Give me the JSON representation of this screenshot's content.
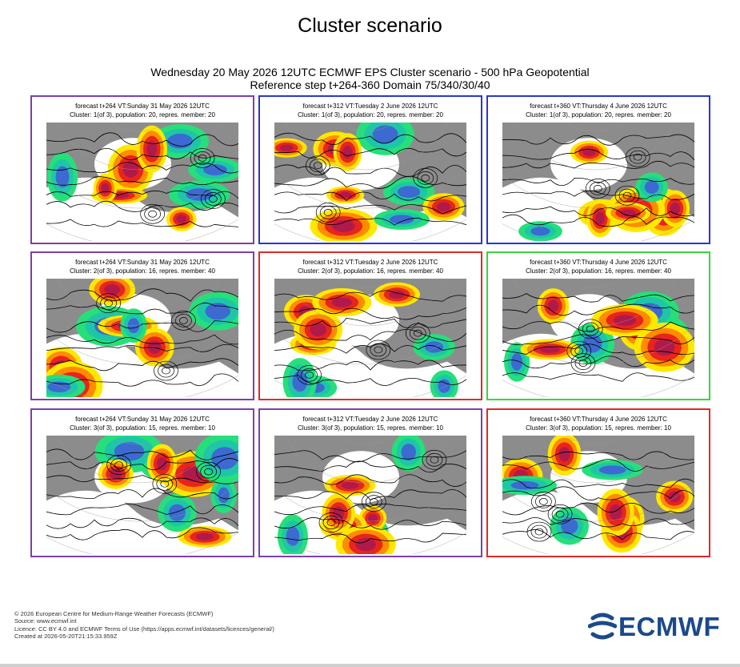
{
  "page": {
    "title": "Cluster scenario",
    "header_line1": "Wednesday 20 May 2026 12UTC ECMWF EPS Cluster scenario - 500 hPa Geopotential",
    "header_line2": "Reference step t+264-360 Domain 75/340/30/40"
  },
  "colors": {
    "cluster_purple": "#7b3fb0",
    "cluster_blue": "#2a34d6",
    "cluster_red": "#e02a2a",
    "cluster_green": "#3bd43b",
    "anomaly_yellow": "#ffe800",
    "anomaly_orange": "#ff8c00",
    "anomaly_red": "#e8241c",
    "anomaly_darkred": "#b01a4a",
    "anomaly_green": "#25e07a",
    "anomaly_teal": "#1ec6a8",
    "anomaly_blue": "#3c6ad0",
    "land_grey": "#8c8c8c"
  },
  "panels": [
    {
      "line1": "forecast t+264 VT:Sunday 31 May 2026 12UTC",
      "line2": "Cluster: 1(of 3), population: 20, repres. member: 20",
      "frame_color": "purple"
    },
    {
      "line1": "forecast t+312 VT:Tuesday 2 June 2026 12UTC",
      "line2": "Cluster: 1(of 3), population: 20, repres. member: 20",
      "frame_color": "blue"
    },
    {
      "line1": "forecast t+360 VT:Thursday 4 June 2026 12UTC",
      "line2": "Cluster: 1(of 3), population: 20, repres. member: 20",
      "frame_color": "blue"
    },
    {
      "line1": "forecast t+264 VT:Sunday 31 May 2026 12UTC",
      "line2": "Cluster: 2(of 3), population: 16, repres. member: 40",
      "frame_color": "purple"
    },
    {
      "line1": "forecast t+312 VT:Tuesday 2 June 2026 12UTC",
      "line2": "Cluster: 2(of 3), population: 16, repres. member: 40",
      "frame_color": "red"
    },
    {
      "line1": "forecast t+360 VT:Thursday 4 June 2026 12UTC",
      "line2": "Cluster: 2(of 3), population: 16, repres. member: 40",
      "frame_color": "green"
    },
    {
      "line1": "forecast t+264 VT:Sunday 31 May 2026 12UTC",
      "line2": "Cluster: 3(of 3), population: 15, repres. member: 10",
      "frame_color": "purple"
    },
    {
      "line1": "forecast t+312 VT:Tuesday 2 June 2026 12UTC",
      "line2": "Cluster: 3(of 3), population: 15, repres. member: 10",
      "frame_color": "purple"
    },
    {
      "line1": "forecast t+360 VT:Thursday 4 June 2026 12UTC",
      "line2": "Cluster: 3(of 3), population: 15, repres. member: 10",
      "frame_color": "red"
    }
  ],
  "footer": {
    "line1": "© 2026 European Centre for Medium-Range Weather Forecasts (ECMWF)",
    "line2": "Source: www.ecmwf.int",
    "line3": "Licence: CC BY 4.0 and ECMWF Terms of Use (https://apps.ecmwf.int/datasets/licences/general/)",
    "line4": "Created at 2026-05-20T21:15:33.959Z"
  },
  "logo": {
    "text": "ECMWF",
    "icon": "ecmwf-logo-icon"
  }
}
